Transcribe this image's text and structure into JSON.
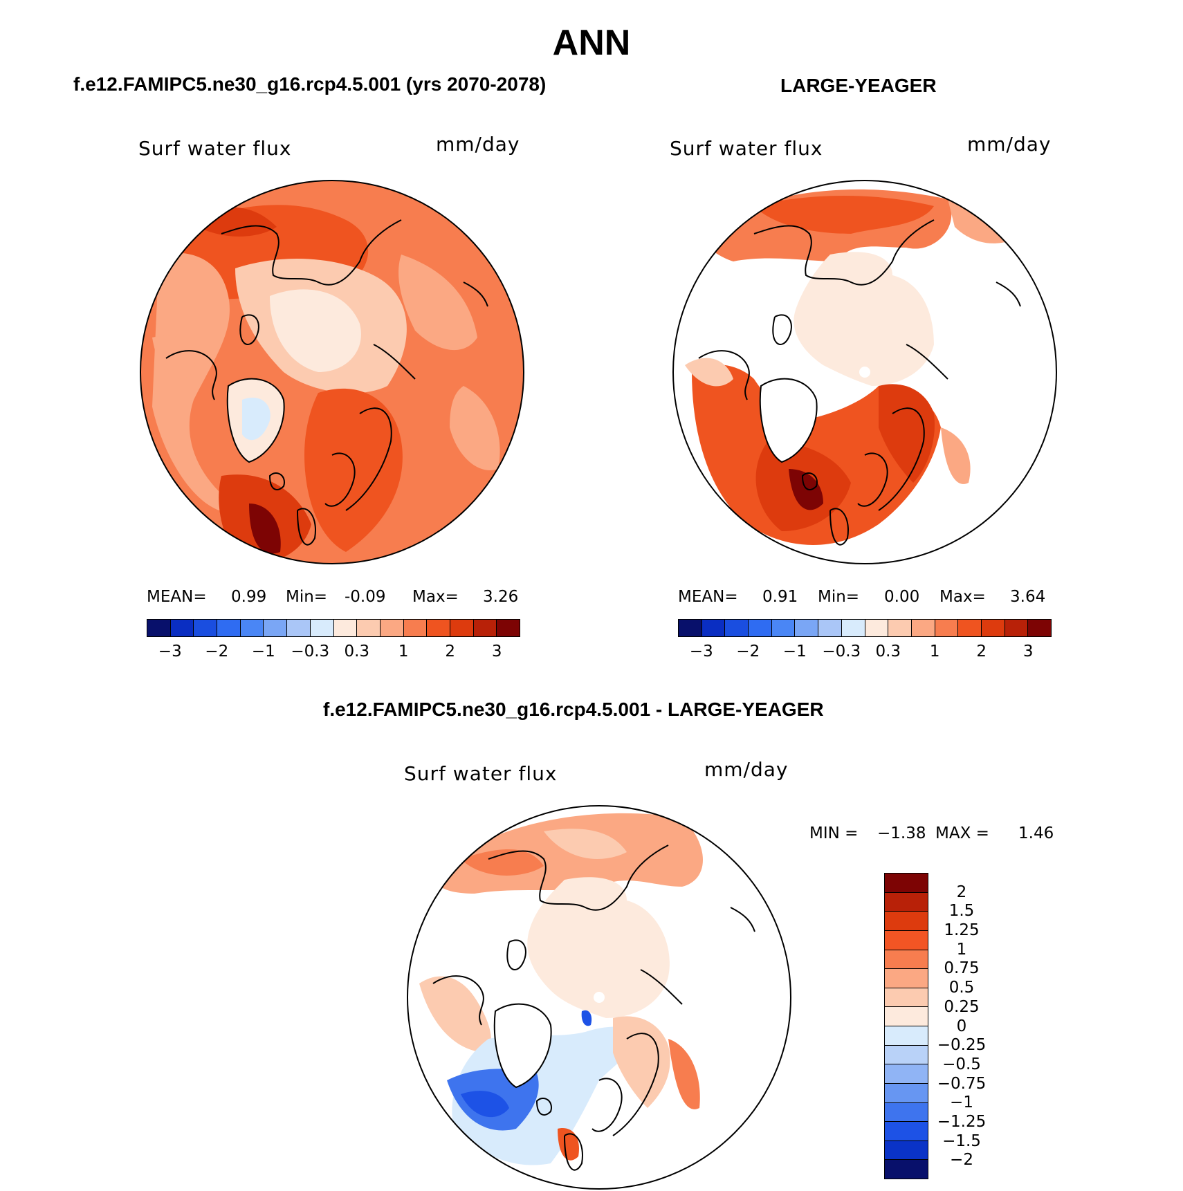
{
  "title": "ANN",
  "panels": [
    {
      "title": "f.e12.FAMIPC5.ne30_g16.rcp4.5.001 (yrs 2070-2078)",
      "field": "Surf water flux",
      "units": "mm/day",
      "stats": {
        "mean_label": "MEAN=",
        "mean": "0.99",
        "min_label": "Min=",
        "min": "-0.09",
        "max_label": "Max=",
        "max": "3.26"
      },
      "colorbar": {
        "colors": [
          "#08106b",
          "#0a2ec2",
          "#1a4ee0",
          "#2f6cf2",
          "#4a86f5",
          "#7aa6f5",
          "#aac6f7",
          "#d8ebfc",
          "#fdeadd",
          "#fccbb0",
          "#fba883",
          "#f77d4f",
          "#ef5420",
          "#dd3b0e",
          "#b82108",
          "#7d0404"
        ],
        "ticks": [
          "−3",
          "−2",
          "−1",
          "−0.3",
          "0.3",
          "1",
          "2",
          "3"
        ]
      }
    },
    {
      "title": "LARGE-YEAGER",
      "field": "Surf water flux",
      "units": "mm/day",
      "stats": {
        "mean_label": "MEAN=",
        "mean": "0.91",
        "min_label": "Min=",
        "min": "0.00",
        "max_label": "Max=",
        "max": "3.64"
      },
      "colorbar": {
        "colors": [
          "#08106b",
          "#0a2ec2",
          "#1a4ee0",
          "#2f6cf2",
          "#4a86f5",
          "#7aa6f5",
          "#aac6f7",
          "#d8ebfc",
          "#fdeadd",
          "#fccbb0",
          "#fba883",
          "#f77d4f",
          "#ef5420",
          "#dd3b0e",
          "#b82108",
          "#7d0404"
        ],
        "ticks": [
          "−3",
          "−2",
          "−1",
          "−0.3",
          "0.3",
          "1",
          "2",
          "3"
        ]
      }
    }
  ],
  "diff": {
    "title": "f.e12.FAMIPC5.ne30_g16.rcp4.5.001 - LARGE-YEAGER",
    "field": "Surf water flux",
    "units": "mm/day",
    "stats": {
      "min_label": "MIN =",
      "min": "−1.38",
      "max_label": "MAX =",
      "max": "1.46"
    },
    "colorbar": {
      "colors": [
        "#7d0404",
        "#b82108",
        "#dd3b0e",
        "#f25524",
        "#f77d4f",
        "#fba883",
        "#fccbb0",
        "#fdeadd",
        "#d8ebfc",
        "#b9d2f8",
        "#90b4f5",
        "#6796f2",
        "#3e74ee",
        "#1d52e6",
        "#0a33c7",
        "#08106b"
      ],
      "labels": [
        "2",
        "1.5",
        "1.25",
        "1",
        "0.75",
        "0.5",
        "0.25",
        "0",
        "−0.25",
        "−0.5",
        "−0.75",
        "−1",
        "−1.25",
        "−1.5",
        "−2"
      ]
    }
  }
}
